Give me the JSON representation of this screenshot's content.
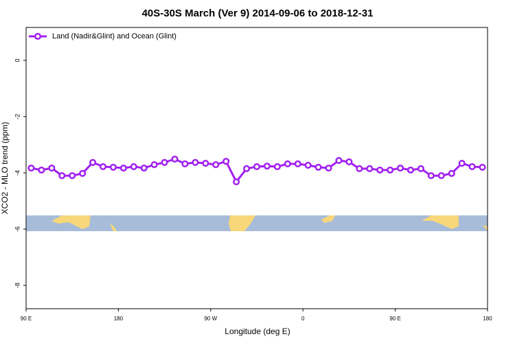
{
  "chart_data": {
    "type": "line",
    "title": "40S-30S March (Ver 9)   2014-09-06 to 2018-12-31",
    "x_label": "Longitude (deg E)",
    "y_label": "XCO2 - MLO trend (ppm)",
    "x": [
      95,
      105,
      115,
      125,
      135,
      145,
      155,
      165,
      175,
      185,
      195,
      205,
      215,
      225,
      235,
      245,
      255,
      265,
      275,
      285,
      295,
      305,
      315,
      325,
      335,
      345,
      355,
      365,
      375,
      385,
      395,
      405,
      415,
      425,
      435,
      445,
      455,
      465,
      475,
      485,
      495,
      505,
      515,
      525,
      535
    ],
    "series": [
      {
        "name": "Land (Nadir&Glint) and Ocean (Glint)",
        "color": "#a020f0",
        "values": [
          -3.83,
          -3.9,
          -3.83,
          -4.1,
          -4.1,
          -4.02,
          -3.63,
          -3.78,
          -3.8,
          -3.83,
          -3.78,
          -3.83,
          -3.71,
          -3.63,
          -3.51,
          -3.68,
          -3.63,
          -3.66,
          -3.71,
          -3.59,
          -4.32,
          -3.85,
          -3.78,
          -3.76,
          -3.78,
          -3.68,
          -3.68,
          -3.73,
          -3.8,
          -3.83,
          -3.56,
          -3.61,
          -3.85,
          -3.85,
          -3.9,
          -3.9,
          -3.83,
          -3.9,
          -3.85,
          -4.1,
          -4.1,
          -4.02,
          -3.66,
          -3.78,
          -3.8
        ]
      }
    ],
    "xlim": [
      90,
      540
    ],
    "xticks": [
      {
        "value": 90,
        "label": "90 E"
      },
      180,
      {
        "value": 270,
        "label": "90 W"
      },
      {
        "value": 360,
        "label": "0"
      },
      {
        "value": 450,
        "label": "90 E"
      },
      {
        "value": 540,
        "label": "180"
      }
    ],
    "ylim": [
      -8.83,
      1.17
    ],
    "yticks": [
      0,
      -2,
      -4,
      -6,
      -8
    ],
    "legend": "top-left"
  }
}
